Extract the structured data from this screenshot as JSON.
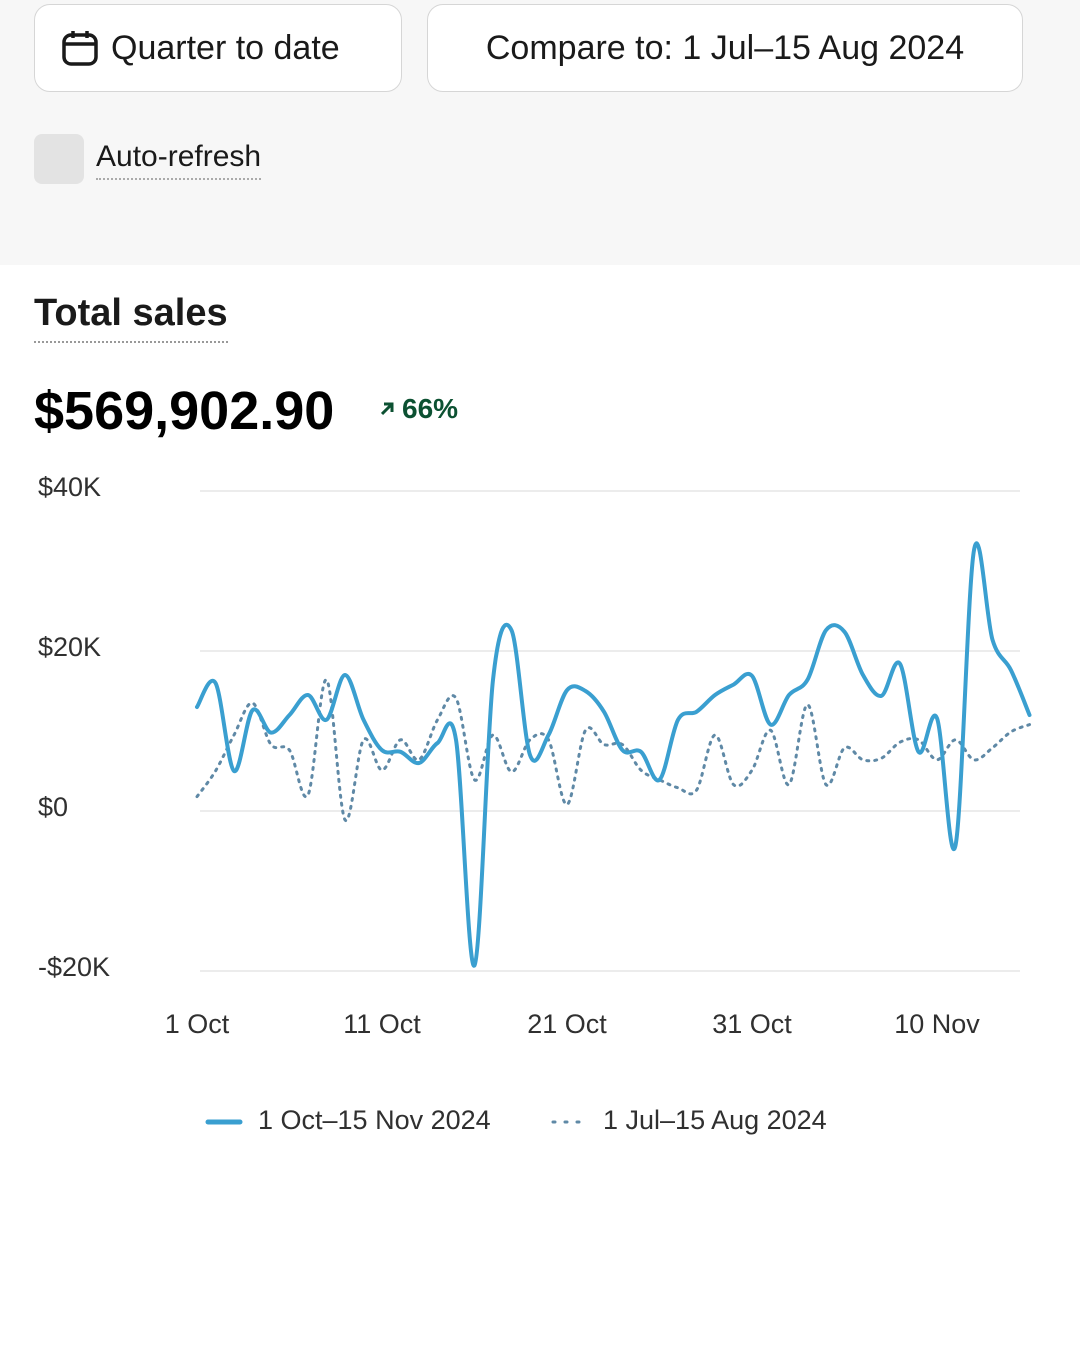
{
  "controls": {
    "date_range": "Quarter to date",
    "compare": "Compare to: 1 Jul–15 Aug 2024",
    "auto_refresh": "Auto-refresh"
  },
  "card": {
    "title": "Total sales",
    "total": "$569,902.90",
    "change": "66%"
  },
  "chart_data": {
    "type": "line",
    "categories": [
      "1 Oct",
      null,
      null,
      null,
      null,
      null,
      null,
      null,
      null,
      null,
      "11 Oct",
      null,
      null,
      null,
      null,
      null,
      null,
      null,
      null,
      null,
      "21 Oct",
      null,
      null,
      null,
      null,
      null,
      null,
      null,
      null,
      null,
      "31 Oct",
      null,
      null,
      null,
      null,
      null,
      null,
      null,
      null,
      null,
      "10 Nov",
      null,
      null,
      null,
      null,
      null
    ],
    "series": [
      {
        "name": "1 Oct–15 Nov 2024",
        "color": "#3a9fd0",
        "dashed": false,
        "values": [
          13,
          16,
          5,
          12.6,
          9.8,
          12,
          14.5,
          11.4,
          17,
          11.4,
          7.6,
          7.4,
          6,
          8.5,
          8.9,
          -19.3,
          16.4,
          22.6,
          7,
          9.5,
          15.1,
          15,
          12.4,
          7.6,
          7.4,
          3.9,
          11.4,
          12.4,
          14.5,
          15.8,
          16.9,
          10.8,
          14.5,
          16.4,
          22.6,
          22.4,
          17,
          14.4,
          18.4,
          7.4,
          11.6,
          -4.3,
          32.6,
          21.4,
          17.6,
          12
        ]
      },
      {
        "name": "1 Jul–15 Aug 2024",
        "color": "#5f89a6",
        "dashed": true,
        "values": [
          1.8,
          5,
          9.5,
          13.5,
          8.3,
          7.6,
          2,
          16.4,
          -1.1,
          8.9,
          5.1,
          8.9,
          6.4,
          11.4,
          14.1,
          3.9,
          9.5,
          4.9,
          8.9,
          8.9,
          0.8,
          10.1,
          8.3,
          8.3,
          5.1,
          3.9,
          2.9,
          2.6,
          9.5,
          3.3,
          5.1,
          10.1,
          3.3,
          13.3,
          3.3,
          7.9,
          6.4,
          6.6,
          8.6,
          8.9,
          6.4,
          8.9,
          6.4,
          7.9,
          9.9,
          10.8
        ]
      }
    ],
    "ylim": [
      -20,
      40
    ],
    "yticks": [
      {
        "value": -20,
        "label": "-$20K"
      },
      {
        "value": 0,
        "label": "$0"
      },
      {
        "value": 20,
        "label": "$20K"
      },
      {
        "value": 40,
        "label": "$40K"
      }
    ],
    "grid": true
  }
}
